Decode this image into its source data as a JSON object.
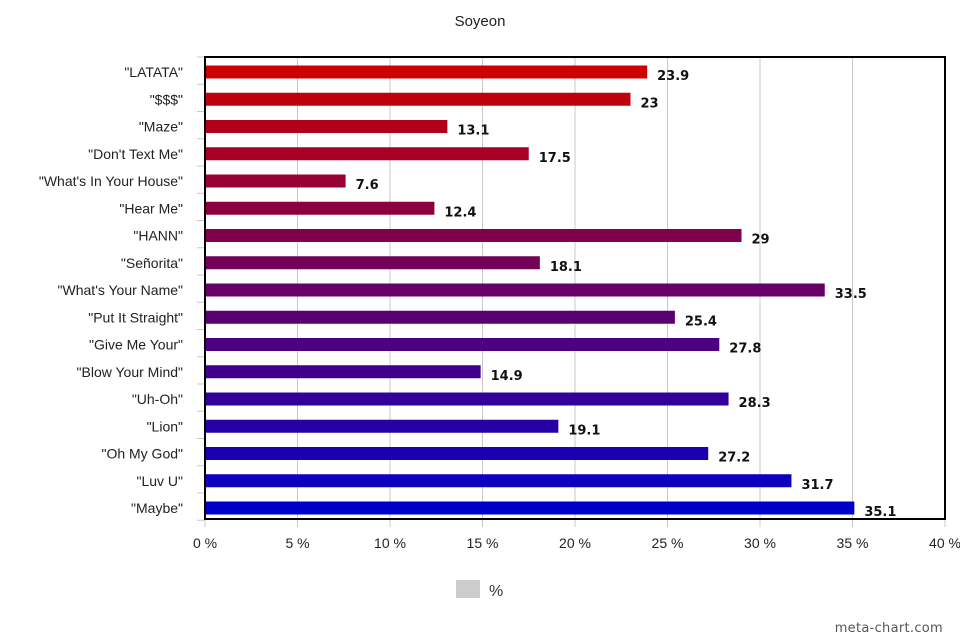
{
  "chart_data": {
    "type": "bar",
    "orientation": "horizontal",
    "title": "Soyeon",
    "xlabel": "",
    "ylabel": "",
    "xlim": [
      0,
      40
    ],
    "grid": true,
    "legend_position": "bottom",
    "categories": [
      "\"LATATA\"",
      "\"$$$\"",
      "\"Maze\"",
      "\"Don't Text Me\"",
      "\"What's In Your House\"",
      "\"Hear Me\"",
      "\"HANN\"",
      "\"Señorita\"",
      "\"What's Your Name\"",
      "\"Put It Straight\"",
      "\"Give Me Your\"",
      "\"Blow Your Mind\"",
      "\"Uh-Oh\"",
      "\"Lion\"",
      "\"Oh My God\"",
      "\"Luv U\"",
      "\"Maybe\""
    ],
    "series": [
      {
        "name": "%",
        "values": [
          23.9,
          23,
          13.1,
          17.5,
          7.6,
          12.4,
          29,
          18.1,
          33.5,
          25.4,
          27.8,
          14.9,
          28.3,
          19.1,
          27.2,
          31.7,
          35.1
        ],
        "value_labels": [
          "23.9",
          "23",
          "13.1",
          "17.5",
          "7.6",
          "12.4",
          "29",
          "18.1",
          "33.5",
          "25.4",
          "27.8",
          "14.9",
          "28.3",
          "19.1",
          "27.2",
          "31.7",
          "35.1"
        ]
      }
    ],
    "x_ticks": [
      {
        "value": 0,
        "label": "0 %"
      },
      {
        "value": 5,
        "label": "5 %"
      },
      {
        "value": 10,
        "label": "10 %"
      },
      {
        "value": 15,
        "label": "15 %"
      },
      {
        "value": 20,
        "label": "20 %"
      },
      {
        "value": 25,
        "label": "25 %"
      },
      {
        "value": 30,
        "label": "30 %"
      },
      {
        "value": 35,
        "label": "35 %"
      },
      {
        "value": 40,
        "label": "40 %"
      }
    ],
    "bar_colors": [
      "#cc0000",
      "#0000cc"
    ],
    "legend_swatch_color": "#cccccc"
  },
  "credit": "meta-chart.com"
}
